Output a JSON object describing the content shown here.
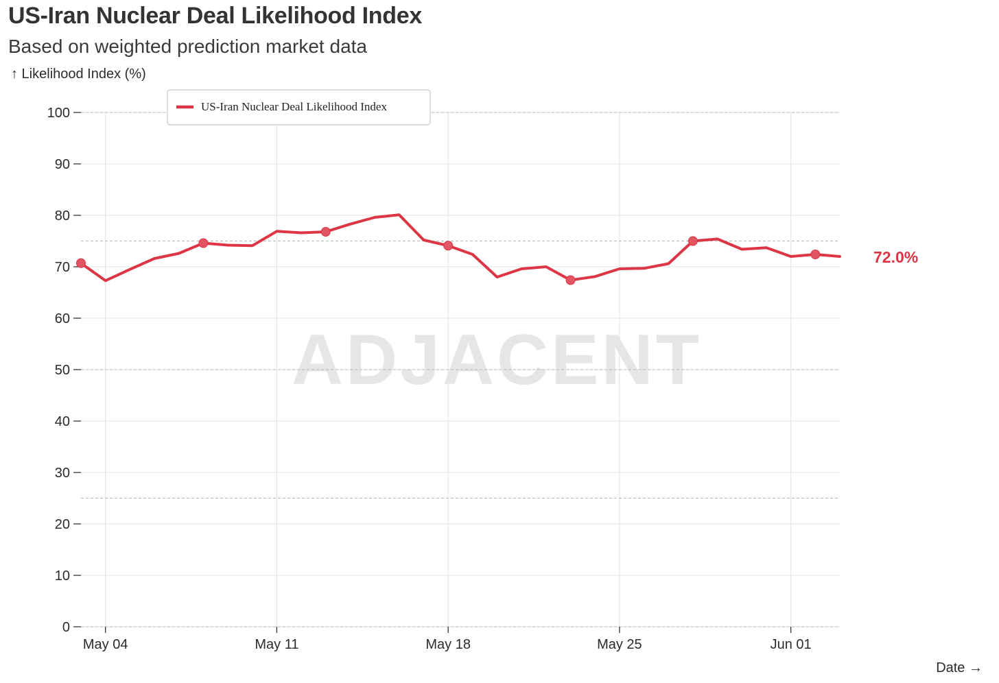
{
  "chart_data": {
    "type": "line",
    "title": "US-Iran Nuclear Deal Likelihood Index",
    "subtitle": "Based on weighted prediction market data",
    "ylabel": "↑ Likelihood Index (%)",
    "xlabel": "Date →",
    "ylim": [
      0,
      100
    ],
    "yticks": [
      0,
      10,
      20,
      30,
      40,
      50,
      60,
      70,
      80,
      90,
      100
    ],
    "reference_lines": [
      25,
      50,
      75,
      100
    ],
    "watermark": "ADJACENT",
    "legend": {
      "position": "top-left",
      "entries": [
        "US-Iran Nuclear Deal Likelihood Index"
      ]
    },
    "color": "#dc3545",
    "last_value_label": "72.0%",
    "xticks": [
      {
        "day": 1,
        "label": "May 04"
      },
      {
        "day": 8,
        "label": "May 11"
      },
      {
        "day": 15,
        "label": "May 18"
      },
      {
        "day": 22,
        "label": "May 25"
      },
      {
        "day": 29,
        "label": "Jun 01"
      }
    ],
    "x_range_days": [
      0,
      31
    ],
    "x_reference": "May 03",
    "series": [
      {
        "name": "US-Iran Nuclear Deal Likelihood Index",
        "x_days": [
          0,
          1,
          2,
          3,
          4,
          5,
          6,
          7,
          8,
          9,
          10,
          11,
          12,
          13,
          14,
          15,
          16,
          17,
          18,
          19,
          20,
          21,
          22,
          23,
          24,
          25,
          26,
          27,
          28,
          29,
          30,
          31
        ],
        "values": [
          70.7,
          67.3,
          69.5,
          71.6,
          72.6,
          74.6,
          74.2,
          74.1,
          76.9,
          76.6,
          76.8,
          78.3,
          79.6,
          80.1,
          75.2,
          74.1,
          72.4,
          68.0,
          69.6,
          70.0,
          67.4,
          68.1,
          69.6,
          69.7,
          70.6,
          75.0,
          75.4,
          73.4,
          73.7,
          72.0,
          72.4,
          72.0
        ],
        "markers": [
          0,
          5,
          10,
          15,
          20,
          25,
          30
        ]
      }
    ]
  }
}
